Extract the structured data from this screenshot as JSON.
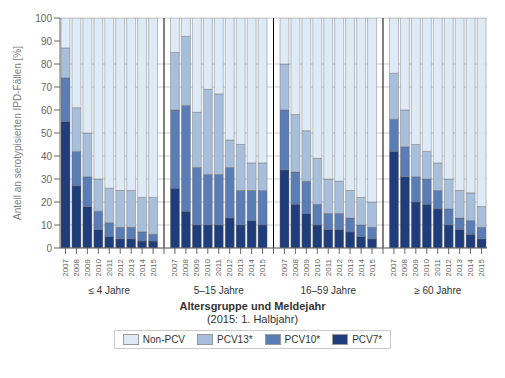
{
  "chart_data": {
    "type": "bar",
    "stacked": true,
    "grid": true,
    "legend": "bottom",
    "groups": [
      "≤ 4 Jahre",
      "5–15 Jahre",
      "16–59 Jahre",
      "≥ 60 Jahre"
    ],
    "categories": [
      "2007",
      "2008",
      "2009",
      "2010",
      "2011",
      "2012",
      "2013",
      "2014",
      "2015",
      "2007",
      "2008",
      "2009",
      "2010",
      "2011",
      "2012",
      "2013",
      "2014",
      "2015",
      "2007",
      "2008",
      "2009",
      "2010",
      "2011",
      "2012",
      "2013",
      "2014",
      "2015",
      "2007",
      "2008",
      "2009",
      "2010",
      "2011",
      "2012",
      "2013",
      "2014",
      "2015"
    ],
    "series": [
      {
        "name": "PCV7*",
        "color": "#1f3d7a",
        "values": [
          55,
          27,
          18,
          8,
          5,
          4,
          4,
          3,
          3,
          26,
          16,
          10,
          10,
          10,
          13,
          10,
          12,
          10,
          34,
          19,
          15,
          10,
          8,
          8,
          7,
          5,
          4,
          42,
          31,
          20,
          19,
          17,
          10,
          8,
          6,
          4
        ]
      },
      {
        "name": "PCV10*",
        "color": "#5b7db5",
        "values": [
          19,
          15,
          13,
          8,
          6,
          5,
          5,
          4,
          3,
          34,
          46,
          25,
          22,
          22,
          22,
          15,
          13,
          15,
          26,
          14,
          14,
          9,
          7,
          7,
          6,
          5,
          5,
          14,
          13,
          11,
          11,
          8,
          7,
          5,
          6,
          5
        ]
      },
      {
        "name": "PCV13*",
        "color": "#a8bfdc",
        "values": [
          13,
          19,
          19,
          14,
          15,
          16,
          16,
          15,
          16,
          25,
          30,
          24,
          37,
          35,
          12,
          20,
          12,
          12,
          20,
          25,
          22,
          20,
          15,
          14,
          12,
          12,
          11,
          20,
          16,
          14,
          12,
          12,
          13,
          12,
          12,
          9
        ]
      },
      {
        "name": "Non-PCV",
        "color": "#deeaf5",
        "values": [
          13,
          39,
          50,
          70,
          74,
          75,
          75,
          78,
          78,
          15,
          8,
          41,
          31,
          33,
          53,
          55,
          63,
          63,
          20,
          42,
          49,
          61,
          70,
          71,
          75,
          78,
          80,
          24,
          40,
          55,
          58,
          63,
          70,
          75,
          76,
          82
        ]
      }
    ],
    "ylabel": "Anteil an serotypisierten IPD-Fällen [%]",
    "xlabel": "Altersgruppe und Meldejahr",
    "xlabel_note": "(2015: 1. Halbjahr)",
    "ylim": [
      0,
      100
    ],
    "yticks": [
      0,
      10,
      20,
      30,
      40,
      50,
      60,
      70,
      80,
      90,
      100
    ]
  }
}
